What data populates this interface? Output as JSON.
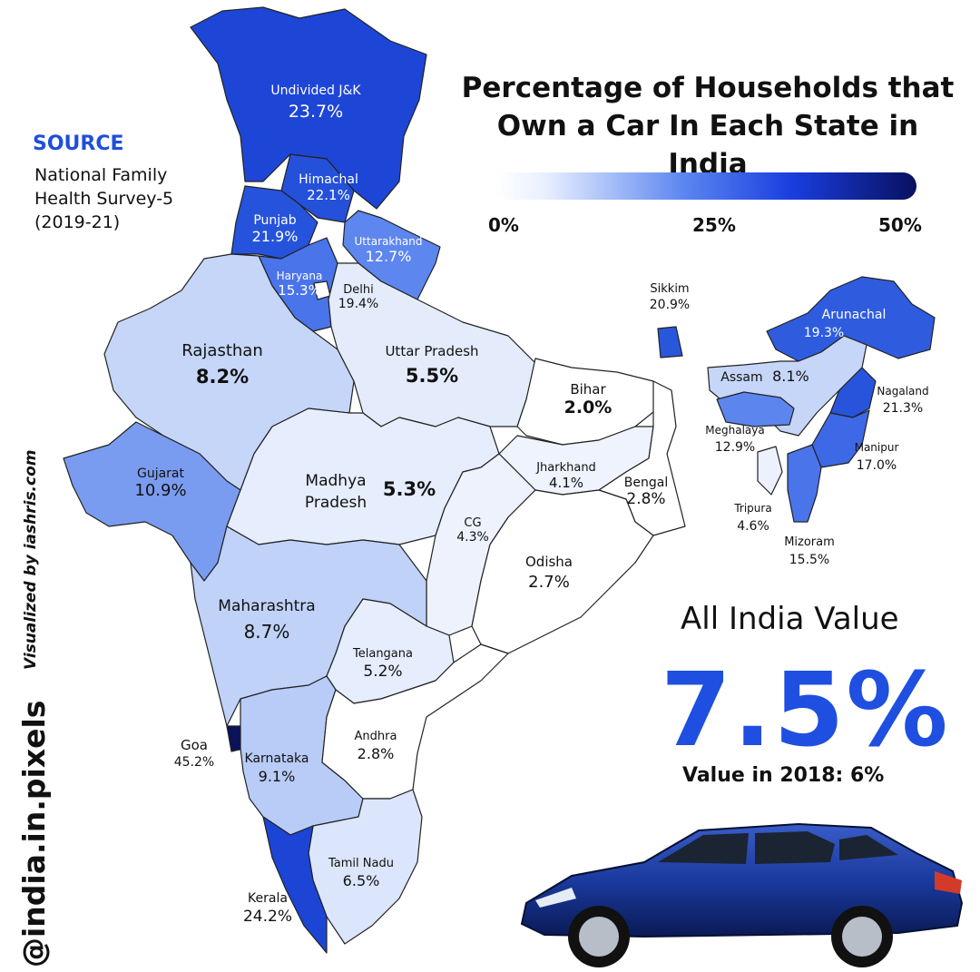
{
  "title_line1": "Percentage of Households that",
  "title_line2": "Own a Car In Each State in India",
  "source_heading": "SOURCE",
  "source_line1": "National Family",
  "source_line2": "Health Survey-5",
  "source_line3": "(2019-21)",
  "legend": {
    "min": "0%",
    "mid": "25%",
    "max": "50%",
    "colors": [
      "#ffffff",
      "#e8efff",
      "#5b85f0",
      "#1a3fe0",
      "#091060"
    ]
  },
  "credit_visualized": "Visualized by iashris.com",
  "credit_handle": "@india.in.pixels",
  "all_india": {
    "heading": "All India Value",
    "value": "7.5%",
    "sub": "Value in 2018: 6%"
  },
  "states": [
    {
      "name": "Undivided J&K",
      "value": "23.7%",
      "color": "#1e46d6",
      "text_color": "#ffffff"
    },
    {
      "name": "Himachal",
      "value": "22.1%",
      "color": "#2450da",
      "text_color": "#ffffff"
    },
    {
      "name": "Punjab",
      "value": "21.9%",
      "color": "#2653db",
      "text_color": "#ffffff"
    },
    {
      "name": "Uttarakhand",
      "value": "12.7%",
      "color": "#5d86ee",
      "text_color": "#ffffff"
    },
    {
      "name": "Haryana",
      "value": "15.3%",
      "color": "#4a74ea",
      "text_color": "#ffffff"
    },
    {
      "name": "Delhi",
      "value": "19.4%",
      "color": "#ffffff",
      "text_color": "#111111"
    },
    {
      "name": "Rajasthan",
      "value": "8.2%",
      "color": "#c5d6f8",
      "text_color": "#111111"
    },
    {
      "name": "Uttar Pradesh",
      "value": "5.5%",
      "color": "#e4ecfc",
      "text_color": "#111111"
    },
    {
      "name": "Bihar",
      "value": "2.0%",
      "color": "#ffffff",
      "text_color": "#111111"
    },
    {
      "name": "Gujarat",
      "value": "10.9%",
      "color": "#7a9cf0",
      "text_color": "#111111"
    },
    {
      "name": "Madhya Pradesh",
      "value": "5.3%",
      "color": "#e6edfc",
      "text_color": "#111111"
    },
    {
      "name": "Jharkhand",
      "value": "4.1%",
      "color": "#eef3fd",
      "text_color": "#111111"
    },
    {
      "name": "Bengal",
      "value": "2.8%",
      "color": "#ffffff",
      "text_color": "#111111"
    },
    {
      "name": "CG",
      "value": "4.3%",
      "color": "#edf2fd",
      "text_color": "#111111"
    },
    {
      "name": "Odisha",
      "value": "2.7%",
      "color": "#ffffff",
      "text_color": "#111111"
    },
    {
      "name": "Maharashtra",
      "value": "8.7%",
      "color": "#c0d2f8",
      "text_color": "#111111"
    },
    {
      "name": "Telangana",
      "value": "5.2%",
      "color": "#e6edfc",
      "text_color": "#111111"
    },
    {
      "name": "Goa",
      "value": "45.2%",
      "color": "#0a1258",
      "text_color": "#111111"
    },
    {
      "name": "Karnataka",
      "value": "9.1%",
      "color": "#b8ccf7",
      "text_color": "#111111"
    },
    {
      "name": "Andhra",
      "value": "2.8%",
      "color": "#ffffff",
      "text_color": "#111111"
    },
    {
      "name": "Tamil Nadu",
      "value": "6.5%",
      "color": "#dbe5fb",
      "text_color": "#111111"
    },
    {
      "name": "Kerala",
      "value": "24.2%",
      "color": "#1c45d6",
      "text_color": "#111111"
    },
    {
      "name": "Sikkim",
      "value": "20.9%",
      "color": "#2957dc",
      "text_color": "#111111"
    },
    {
      "name": "Arunachal",
      "value": "19.3%",
      "color": "#2f5cde",
      "text_color": "#ffffff"
    },
    {
      "name": "Assam",
      "value": "8.1%",
      "color": "#c6d6f8",
      "text_color": "#111111"
    },
    {
      "name": "Nagaland",
      "value": "21.3%",
      "color": "#2754db",
      "text_color": "#111111"
    },
    {
      "name": "Meghalaya",
      "value": "12.9%",
      "color": "#5c85ee",
      "text_color": "#111111"
    },
    {
      "name": "Manipur",
      "value": "17.0%",
      "color": "#3d69e6",
      "text_color": "#111111"
    },
    {
      "name": "Tripura",
      "value": "4.6%",
      "color": "#ecf1fd",
      "text_color": "#111111"
    },
    {
      "name": "Mizoram",
      "value": "15.5%",
      "color": "#4a74ea",
      "text_color": "#111111"
    }
  ]
}
